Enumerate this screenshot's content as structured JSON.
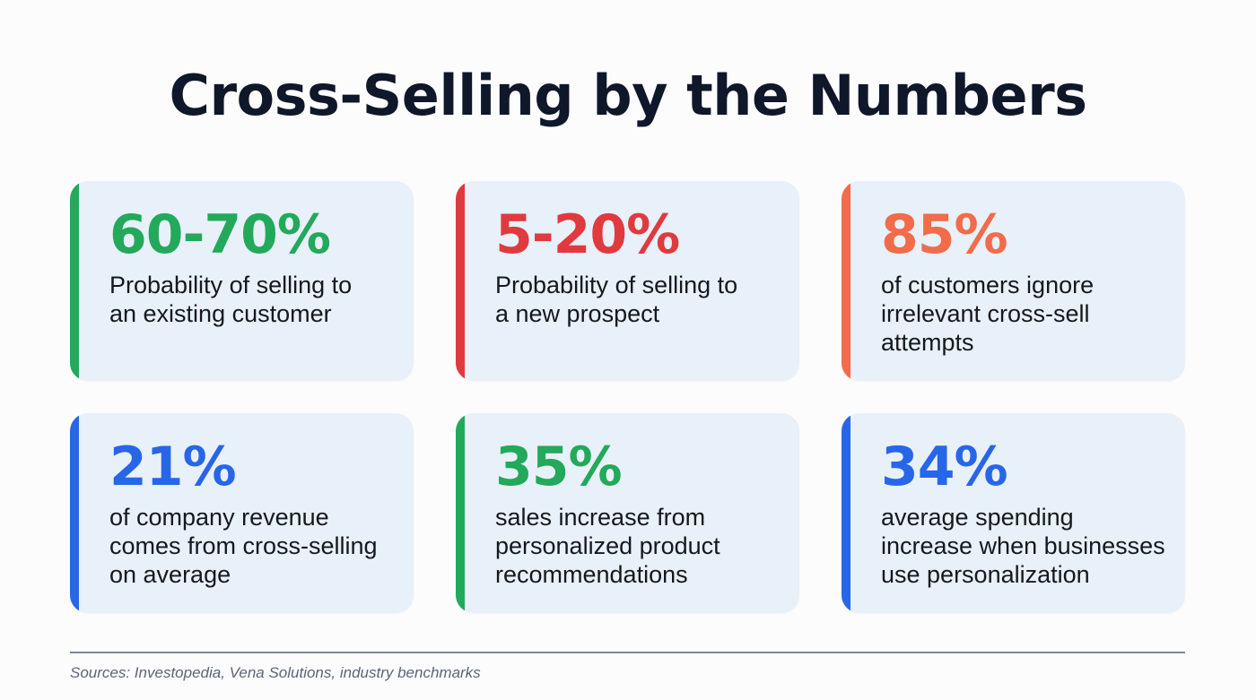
{
  "title": "Cross-Selling by the Numbers",
  "colors": {
    "green": "#22a95a",
    "red": "#e03a3e",
    "orange": "#f26b4a",
    "blue": "#2866e8",
    "card_bg": "#e8f0f9",
    "title": "#0f172a"
  },
  "cards": [
    {
      "stat": "60-70%",
      "description": "Probability of selling to an existing customer",
      "lines": [
        "Probability of selling to",
        "an existing customer"
      ],
      "accent": "#22a95a"
    },
    {
      "stat": "5-20%",
      "description": "Probability of selling to a new prospect",
      "lines": [
        "Probability of selling to",
        "a new prospect"
      ],
      "accent": "#e03a3e"
    },
    {
      "stat": "85%",
      "description": "of customers ignore irrelevant cross-sell attempts",
      "lines": [
        "of customers ignore",
        "irrelevant cross-sell",
        "attempts"
      ],
      "accent": "#f26b4a"
    },
    {
      "stat": "21%",
      "description": "of company revenue comes from cross-selling on average",
      "lines": [
        "of company revenue",
        "comes from cross-selling",
        "on average"
      ],
      "accent": "#2866e8"
    },
    {
      "stat": "35%",
      "description": "sales increase from personalized product recommendations",
      "lines": [
        "sales increase from",
        "personalized product",
        "recommendations"
      ],
      "accent": "#22a95a"
    },
    {
      "stat": "34%",
      "description": "average spending increase when businesses use personalization",
      "lines": [
        "average spending",
        "increase when businesses",
        "use personalization"
      ],
      "accent": "#2866e8"
    }
  ],
  "footer": {
    "sources": "Sources: Investopedia, Vena Solutions, industry benchmarks"
  }
}
